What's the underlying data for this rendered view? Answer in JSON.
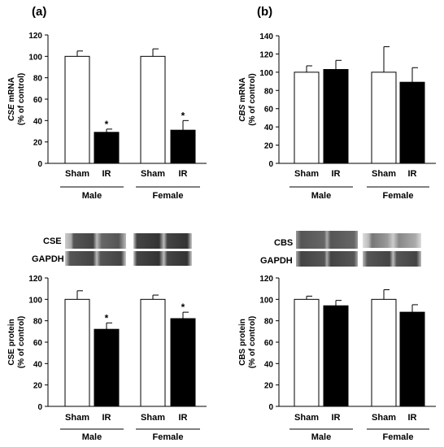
{
  "panels": {
    "a_label": "(a)",
    "b_label": "(b)"
  },
  "blots": {
    "cse_label": "CSE",
    "cbs_label": "CBS",
    "gapdh_label_a": "GAPDH",
    "gapdh_label_b": "GAPDH"
  },
  "colors": {
    "sham": "#ffffff",
    "ir": "#000000",
    "axis": "#000000"
  },
  "chart_data": [
    {
      "id": "cse-mrna",
      "type": "bar",
      "ylabel_italic": "CSE",
      "ylabel_rest": " mRNA",
      "ylabel2": "(% of control)",
      "ylim": [
        0,
        120
      ],
      "yticks": [
        0,
        20,
        40,
        60,
        80,
        100,
        120
      ],
      "categories": [
        "Sham",
        "IR",
        "Sham",
        "IR"
      ],
      "groups": [
        "Male",
        "Female"
      ],
      "values": [
        100,
        29,
        100,
        31
      ],
      "errors": [
        5,
        3,
        7,
        9
      ],
      "significant": [
        false,
        true,
        false,
        true
      ],
      "sig_marker": "*"
    },
    {
      "id": "cbs-mrna",
      "type": "bar",
      "ylabel_italic": "CBS",
      "ylabel_rest": " mRNA",
      "ylabel2": "(% of control)",
      "ylim": [
        0,
        140
      ],
      "yticks": [
        0,
        20,
        40,
        60,
        80,
        100,
        120,
        140
      ],
      "categories": [
        "Sham",
        "IR",
        "Sham",
        "IR"
      ],
      "groups": [
        "Male",
        "Female"
      ],
      "values": [
        100,
        103,
        100,
        89
      ],
      "errors": [
        7,
        10,
        28,
        16
      ],
      "significant": [
        false,
        false,
        false,
        false
      ],
      "sig_marker": "*"
    },
    {
      "id": "cse-protein",
      "type": "bar",
      "ylabel_italic": "",
      "ylabel_rest": "CSE protein",
      "ylabel2": "(% of control)",
      "ylim": [
        0,
        120
      ],
      "yticks": [
        0,
        20,
        40,
        60,
        80,
        100,
        120
      ],
      "categories": [
        "Sham",
        "IR",
        "Sham",
        "IR"
      ],
      "groups": [
        "Male",
        "Female"
      ],
      "values": [
        100,
        72,
        100,
        82
      ],
      "errors": [
        8,
        6,
        4,
        6
      ],
      "significant": [
        false,
        true,
        false,
        true
      ],
      "sig_marker": "*"
    },
    {
      "id": "cbs-protein",
      "type": "bar",
      "ylabel_italic": "",
      "ylabel_rest": "CBS protein",
      "ylabel2": "(% of control)",
      "ylim": [
        0,
        120
      ],
      "yticks": [
        0,
        20,
        40,
        60,
        80,
        100,
        120
      ],
      "categories": [
        "Sham",
        "IR",
        "Sham",
        "IR"
      ],
      "groups": [
        "Male",
        "Female"
      ],
      "values": [
        100,
        94,
        100,
        88
      ],
      "errors": [
        3,
        5,
        9,
        7
      ],
      "significant": [
        false,
        false,
        false,
        false
      ],
      "sig_marker": "*"
    }
  ]
}
